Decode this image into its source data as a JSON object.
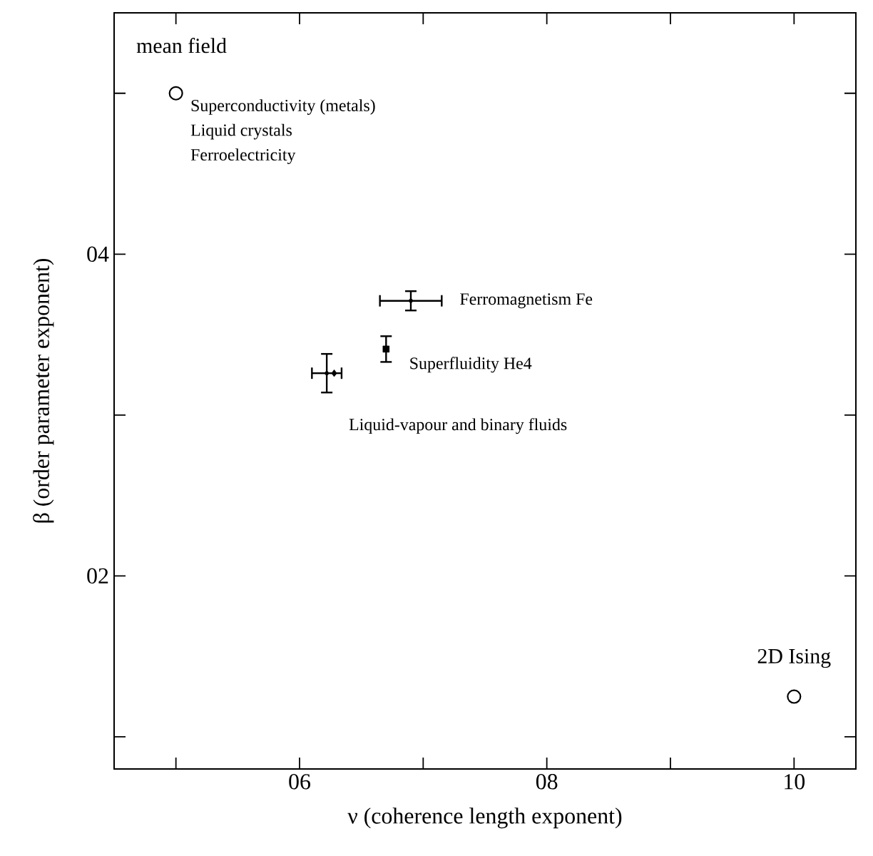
{
  "chart_data": {
    "type": "scatter",
    "xlabel": "ν (coherence length exponent)",
    "ylabel": "β (order parameter exponent)",
    "xlim": [
      4.5,
      10.5
    ],
    "ylim": [
      0.8,
      5.5
    ],
    "xticks": [
      {
        "value": 5,
        "label": null
      },
      {
        "value": 6,
        "label": "06"
      },
      {
        "value": 7,
        "label": null
      },
      {
        "value": 8,
        "label": "08"
      },
      {
        "value": 9,
        "label": null
      },
      10
    ],
    "yticks": [
      {
        "value": 1,
        "label": null
      },
      {
        "value": 2,
        "label": "02"
      },
      {
        "value": 3,
        "label": null
      },
      {
        "value": 4,
        "label": "04"
      },
      {
        "value": 5,
        "label": null
      }
    ],
    "series": [
      {
        "color": "#000000",
        "marker": "circle",
        "x": [
          5,
          10
        ],
        "values": [
          5.0,
          1.25
        ]
      },
      {
        "color": "#000000",
        "x": [
          6.9
        ],
        "values": [
          3.71
        ],
        "errors": [
          0.06
        ],
        "xerrors": [
          0.25
        ]
      },
      {
        "color": "#000000",
        "marker": "square",
        "x": [
          6.7
        ],
        "values": [
          3.41
        ],
        "errors": [
          0.08
        ]
      },
      {
        "color": "#000000",
        "x": [
          6.22
        ],
        "values": [
          3.26
        ],
        "errors": [
          0.12
        ],
        "xerrors": [
          0.12
        ]
      },
      {
        "color": "#000000",
        "marker": "diamond",
        "x": [
          6.28
        ],
        "values": [
          3.26
        ]
      }
    ],
    "annotations": [
      {
        "text": "mean field",
        "x": 5,
        "y": 5.0
      },
      {
        "text": "Superconductivity (metals)",
        "x": 5,
        "y": 5.0
      },
      "Liquid crystals",
      "Ferroelectricity",
      {
        "text": "Ferromagnetism Fe",
        "x": 6.9,
        "y": 3.71
      },
      {
        "text": "Superfluidity He4",
        "x": 6.7,
        "y": 3.41
      },
      {
        "text": "Liquid-vapour and binary fluids",
        "x": 6.22,
        "y": 3.26
      },
      {
        "text": "2D Ising",
        "x": 10,
        "y": 1.25
      }
    ]
  }
}
